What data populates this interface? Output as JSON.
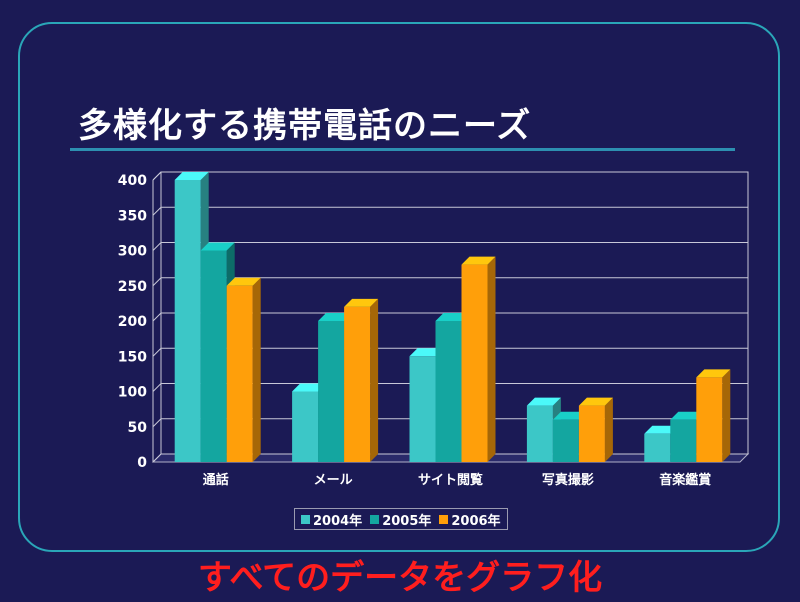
{
  "slide": {
    "title": "多様化する携帯電話のニーズ",
    "caption": "すべてのデータをグラフ化"
  },
  "colors": {
    "background": "#1b1a55",
    "frame": "#2aa6b8",
    "caption": "#ff1e1e"
  },
  "chart_data": {
    "type": "bar",
    "categories": [
      "通話",
      "メール",
      "サイト閲覧",
      "写真撮影",
      "音楽鑑賞"
    ],
    "series": [
      {
        "name": "2004年",
        "values": [
          400,
          100,
          150,
          80,
          40
        ],
        "color": "#3cc7c7"
      },
      {
        "name": "2005年",
        "values": [
          300,
          200,
          200,
          60,
          60
        ],
        "color": "#14a6a0"
      },
      {
        "name": "2006年",
        "values": [
          250,
          220,
          280,
          80,
          120
        ],
        "color": "#ff9f0a"
      }
    ],
    "ylim": [
      0,
      400
    ],
    "yticks": [
      0,
      50,
      100,
      150,
      200,
      250,
      300,
      350,
      400
    ],
    "grid": true,
    "legend": "bottom",
    "xlabel": "",
    "ylabel": ""
  }
}
